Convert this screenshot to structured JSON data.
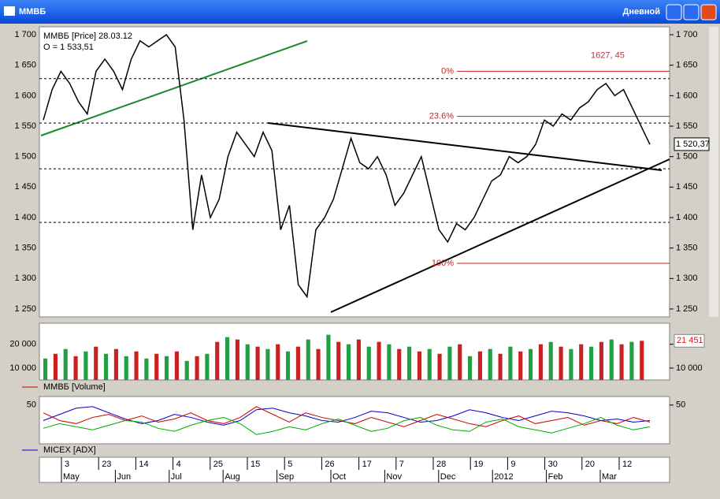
{
  "window": {
    "title": "ММВБ",
    "mode": "Дневной"
  },
  "price_panel": {
    "type": "line",
    "legend": "ММВБ [Price] 28.03.12",
    "open_label": "O = 1 533,51",
    "ylim": [
      1237,
      1713
    ],
    "yticks": [
      {
        "value": 1250,
        "label": "1 250"
      },
      {
        "value": 1300,
        "label": "1 300"
      },
      {
        "value": 1350,
        "label": "1 350"
      },
      {
        "value": 1400,
        "label": "1 400"
      },
      {
        "value": 1450,
        "label": "1 450"
      },
      {
        "value": 1500,
        "label": "1 500"
      },
      {
        "value": 1550,
        "label": "1 550"
      },
      {
        "value": 1600,
        "label": "1 600"
      },
      {
        "value": 1650,
        "label": "1 650"
      },
      {
        "value": 1700,
        "label": "1 700"
      }
    ],
    "values": [
      1560,
      1610,
      1640,
      1620,
      1590,
      1570,
      1640,
      1660,
      1640,
      1610,
      1660,
      1690,
      1680,
      1690,
      1700,
      1680,
      1560,
      1380,
      1470,
      1400,
      1430,
      1500,
      1540,
      1520,
      1500,
      1540,
      1510,
      1380,
      1420,
      1290,
      1270,
      1380,
      1400,
      1430,
      1480,
      1530,
      1490,
      1480,
      1500,
      1470,
      1420,
      1440,
      1470,
      1500,
      1440,
      1380,
      1360,
      1390,
      1380,
      1400,
      1430,
      1460,
      1470,
      1500,
      1490,
      1500,
      1520,
      1560,
      1550,
      1570,
      1560,
      1580,
      1590,
      1610,
      1620,
      1600,
      1610,
      1580,
      1550,
      1520
    ],
    "color": "#000000",
    "levels": [
      1628,
      1555,
      1480,
      1392
    ],
    "fib": [
      {
        "label": "0%",
        "value": 1640
      },
      {
        "label": "23.6%",
        "value": 1566
      },
      {
        "label": "100%",
        "value": 1325
      }
    ],
    "peak_label": "1627, 45",
    "last": {
      "value": 1520.37,
      "label": "1 520,37"
    }
  },
  "volume_panel": {
    "type": "bar",
    "legend": "ММВБ [Volume]",
    "ylim": [
      5000,
      28846
    ],
    "yticks": [
      {
        "value": 10000,
        "label": "10 000"
      },
      {
        "value": 20000,
        "label": "20 000"
      }
    ],
    "values": [
      14000,
      16000,
      18000,
      15000,
      17000,
      19000,
      16000,
      18000,
      15000,
      17000,
      14000,
      16000,
      15000,
      17000,
      13000,
      15000,
      16000,
      21000,
      23000,
      22000,
      20000,
      19000,
      18000,
      20000,
      17000,
      19000,
      22000,
      18000,
      24000,
      21000,
      20000,
      22000,
      19000,
      21000,
      20000,
      18000,
      19000,
      17000,
      18000,
      16000,
      19000,
      20000,
      15000,
      17000,
      18000,
      16000,
      19000,
      17000,
      18000,
      20000,
      21000,
      19000,
      18000,
      20000,
      19000,
      21000,
      22000,
      20000,
      21000,
      21451
    ],
    "last": {
      "value": 21451,
      "label": "21 451"
    }
  },
  "adx_panel": {
    "type": "line",
    "legend": "MICEX [ADX]",
    "ylim": [
      0,
      61
    ],
    "yticks": [
      50
    ],
    "series": [
      {
        "color": "#0000cc",
        "values": [
          30,
          38,
          46,
          48,
          40,
          32,
          26,
          30,
          38,
          34,
          28,
          24,
          30,
          44,
          46,
          40,
          36,
          30,
          28,
          34,
          42,
          40,
          34,
          28,
          30,
          36,
          44,
          40,
          34,
          30,
          36,
          42,
          40,
          36,
          30,
          32,
          28,
          30
        ]
      },
      {
        "color": "#cc0000",
        "values": [
          40,
          30,
          26,
          34,
          38,
          30,
          36,
          28,
          32,
          40,
          30,
          26,
          34,
          48,
          38,
          28,
          40,
          34,
          30,
          26,
          34,
          28,
          22,
          30,
          38,
          32,
          26,
          22,
          30,
          36,
          26,
          30,
          34,
          24,
          30,
          26,
          34,
          28
        ]
      },
      {
        "color": "#00aa00",
        "values": [
          20,
          26,
          22,
          18,
          24,
          30,
          28,
          20,
          16,
          24,
          30,
          34,
          26,
          12,
          16,
          22,
          18,
          26,
          32,
          24,
          16,
          20,
          30,
          34,
          24,
          18,
          16,
          28,
          32,
          22,
          18,
          14,
          20,
          26,
          34,
          24,
          18,
          22
        ]
      }
    ]
  },
  "time_axis": {
    "days": [
      "3",
      "23",
      "14",
      "4",
      "25",
      "15",
      "5",
      "26",
      "17",
      "7",
      "28",
      "19",
      "9",
      "30",
      "20",
      "12"
    ],
    "months": [
      "May",
      "Jun",
      "Jul",
      "Aug",
      "Sep",
      "Oct",
      "Nov",
      "Dec",
      "2012",
      "Feb",
      "Mar"
    ]
  }
}
